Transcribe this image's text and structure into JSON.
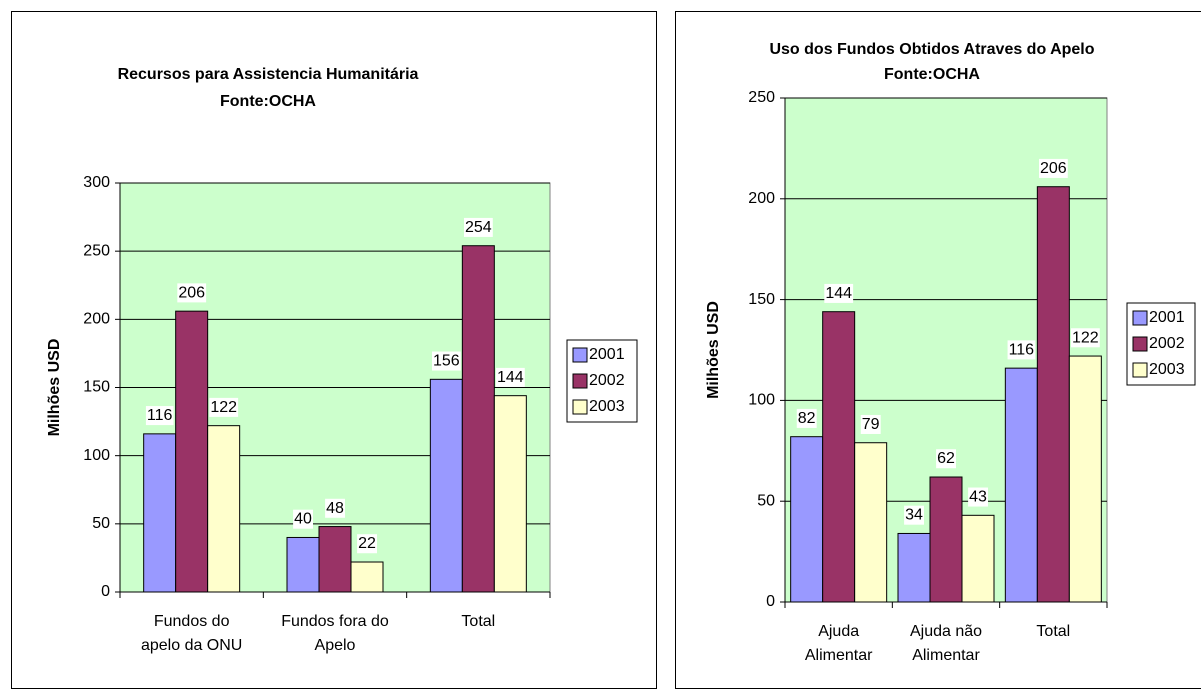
{
  "chart_data": [
    {
      "type": "bar",
      "title": "Recursos para Assistencia Humanitária",
      "subtitle": "Fonte:OCHA",
      "y_label": "Milhões USD",
      "categories": [
        [
          "Fundos do",
          "apelo da ONU"
        ],
        [
          "Fundos fora do",
          "Apelo"
        ],
        [
          "Total"
        ]
      ],
      "series": [
        {
          "name": "2001",
          "color": "#9999ff",
          "values": [
            116,
            40,
            156
          ]
        },
        {
          "name": "2002",
          "color": "#993366",
          "values": [
            206,
            48,
            254
          ]
        },
        {
          "name": "2003",
          "color": "#ffffcc",
          "values": [
            122,
            22,
            144
          ]
        }
      ],
      "ylim": [
        0,
        300
      ],
      "yticks": [
        0,
        50,
        100,
        150,
        200,
        250,
        300
      ],
      "grid": true,
      "legend": "right"
    },
    {
      "type": "bar",
      "title": "Uso dos Fundos Obtidos Atraves do Apelo",
      "subtitle": "Fonte:OCHA",
      "y_label": "Milhões USD",
      "categories": [
        [
          "Ajuda",
          "Alimentar"
        ],
        [
          "Ajuda não",
          "Alimentar"
        ],
        [
          "Total"
        ]
      ],
      "series": [
        {
          "name": "2001",
          "color": "#9999ff",
          "values": [
            82,
            34,
            116
          ]
        },
        {
          "name": "2002",
          "color": "#993366",
          "values": [
            144,
            62,
            206
          ]
        },
        {
          "name": "2003",
          "color": "#ffffcc",
          "values": [
            79,
            43,
            122
          ]
        }
      ],
      "ylim": [
        0,
        250
      ],
      "yticks": [
        0,
        50,
        100,
        150,
        200,
        250
      ],
      "grid": true,
      "legend": "right"
    }
  ]
}
